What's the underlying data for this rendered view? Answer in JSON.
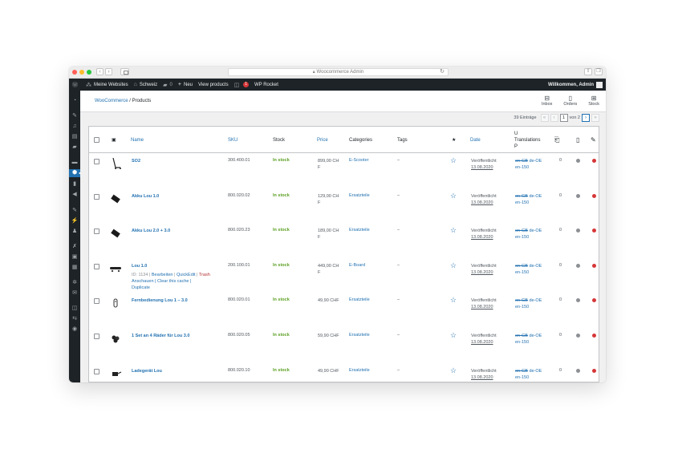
{
  "browser": {
    "url": "Woocommerce Admin",
    "traffic_lights": [
      "#ff5f57",
      "#febc2e",
      "#28c840"
    ]
  },
  "adminbar": {
    "items": [
      {
        "icon": "wordpress-icon",
        "label": ""
      },
      {
        "icon": "network-icon",
        "label": "Meine Websites"
      },
      {
        "icon": "home-icon",
        "label": "Schweiz"
      },
      {
        "icon": "comment-icon",
        "label": "0"
      },
      {
        "icon": "plus-icon",
        "label": "Neu"
      },
      {
        "icon": "",
        "label": "View products"
      },
      {
        "icon": "rocket-icon",
        "label": "WP Rocket"
      }
    ],
    "notification_count": "1",
    "greeting": "Willkommen, Admin"
  },
  "header": {
    "breadcrumb_root": "WooCommerce",
    "breadcrumb_sep": "/",
    "breadcrumb_current": "Products",
    "links": [
      {
        "label": "Inbox",
        "icon": "inbox-icon"
      },
      {
        "label": "Orders",
        "icon": "orders-icon"
      },
      {
        "label": "Stock",
        "icon": "stock-icon"
      }
    ]
  },
  "pagination": {
    "count": "39 Einträge",
    "first": "«",
    "prev": "‹",
    "current": "1",
    "of_label": "von 2",
    "next": "›",
    "last": "»"
  },
  "columns": {
    "name": "Name",
    "sku": "SKU",
    "stock": "Stock",
    "price": "Price",
    "categories": "Categories",
    "tags": "Tags",
    "featured": "★",
    "date": "Date",
    "translations_1": "U",
    "translations_2": "Translations",
    "translations_3": "P"
  },
  "products": [
    {
      "name": "SO2",
      "sku": "300.400.01",
      "stock": "In stock",
      "price_1": "899,00 CH",
      "price_2": "F",
      "category": "E-Scooter",
      "tags": "–",
      "date_1": "Veröffentlicht",
      "date_2": "13.08.2020",
      "lang1": "en-GB",
      "lang2": "de-OE",
      "lang3": "en-150",
      "count": "0",
      "actions_1": "",
      "actions_2": "",
      "actions_3": ""
    },
    {
      "name": "Akku Lou 1.0",
      "sku": "800.020.02",
      "stock": "In stock",
      "price_1": "129,00 CH",
      "price_2": "F",
      "category": "Ersatzteile",
      "tags": "–",
      "date_1": "Veröffentlicht",
      "date_2": "13.08.2020",
      "lang1": "en-GB",
      "lang2": "de-OE",
      "lang3": "en-150",
      "count": "0",
      "actions_1": "",
      "actions_2": "",
      "actions_3": ""
    },
    {
      "name": "Akku Lou 2.0 + 3.0",
      "sku": "800.020.23",
      "stock": "In stock",
      "price_1": "189,00 CH",
      "price_2": "F",
      "category": "Ersatzteile",
      "tags": "–",
      "date_1": "Veröffentlicht",
      "date_2": "13.08.2020",
      "lang1": "en-GB",
      "lang2": "de-OE",
      "lang3": "en-150",
      "count": "0",
      "actions_1": "",
      "actions_2": "",
      "actions_3": ""
    },
    {
      "name": "Lou 1.0",
      "sku": "200.100.01",
      "stock": "In stock",
      "price_1": "449,00 CH",
      "price_2": "F",
      "category": "E-Board",
      "tags": "–",
      "date_1": "Veröffentlicht",
      "date_2": "13.08.2020",
      "lang1": "en-GB",
      "lang2": "de-OE",
      "lang3": "en-150",
      "count": "0",
      "actions_1": "ID: 1134 | ",
      "actions_2": "Anschauen | Clear this cache |",
      "actions_3": "Duplicate"
    },
    {
      "name": "Fernbedienung Lou 1 – 3.0",
      "sku": "800.020.01",
      "stock": "In stock",
      "price_1": "49,90 CHF",
      "price_2": "",
      "category": "Ersatzteile",
      "tags": "–",
      "date_1": "Veröffentlicht",
      "date_2": "13.08.2020",
      "lang1": "en-GB",
      "lang2": "de-OE",
      "lang3": "en-150",
      "count": "0",
      "actions_1": "",
      "actions_2": "",
      "actions_3": ""
    },
    {
      "name": "1 Set an 4 Räder für Lou 3.0",
      "sku": "800.020.05",
      "stock": "In stock",
      "price_1": "59,90 CHF",
      "price_2": "",
      "category": "Ersatzteile",
      "tags": "–",
      "date_1": "Veröffentlicht",
      "date_2": "13.08.2020",
      "lang1": "en-GB",
      "lang2": "de-OE",
      "lang3": "en-150",
      "count": "0",
      "actions_1": "",
      "actions_2": "",
      "actions_3": ""
    },
    {
      "name": "Ladegerät Lou",
      "sku": "800.020.10",
      "stock": "In stock",
      "price_1": "49,90 CHF",
      "price_2": "",
      "category": "Ersatzteile",
      "tags": "–",
      "date_1": "Veröffentlicht",
      "date_2": "13.08.2020",
      "lang1": "en-GB",
      "lang2": "de-OE",
      "lang3": "en-150",
      "count": "0",
      "actions_1": "",
      "actions_2": "",
      "actions_3": ""
    }
  ],
  "row_actions": {
    "edit": "Bearbeiten",
    "quickedit": "QuickEdit",
    "trash": "Trash",
    "sep": " | "
  },
  "status_colors": {
    "grey": "#8c8f94",
    "red": "#d63638",
    "in_stock": "#5b9f22",
    "link": "#2271b1"
  }
}
